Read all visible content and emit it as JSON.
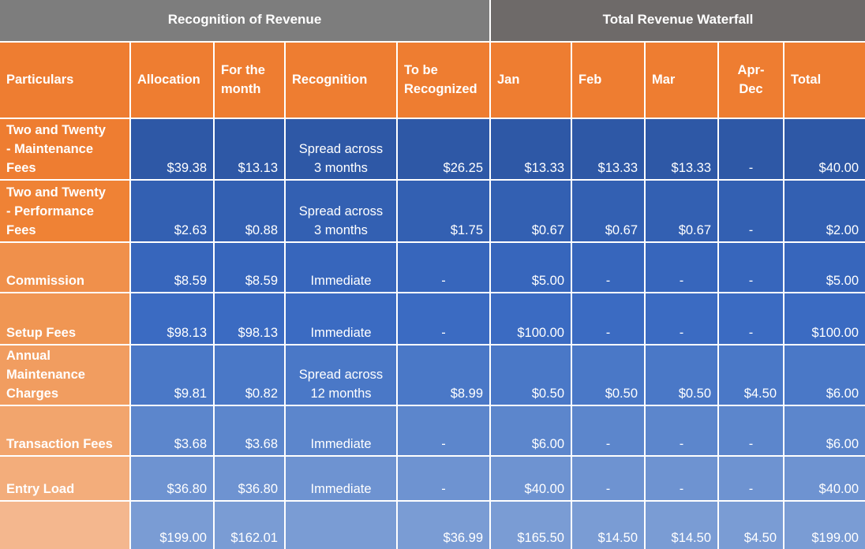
{
  "sections": {
    "recognition": "Recognition of Revenue",
    "waterfall": "Total Revenue Waterfall"
  },
  "headers": {
    "particulars": "Particulars",
    "allocation": "Allocation",
    "for_the_month": "For the\nmonth",
    "recognition": "Recognition",
    "to_be_recognized": "To be\nRecognized",
    "jan": "Jan",
    "feb": "Feb",
    "mar": "Mar",
    "apr_dec": "Apr-\nDec",
    "total": "Total"
  },
  "rows": [
    {
      "particular": "Two and Twenty\n- Maintenance\nFees",
      "allocation": "$39.38",
      "for_month": "$13.13",
      "recognition": "Spread across\n3 months",
      "to_be": "$26.25",
      "jan": "$13.33",
      "feb": "$13.33",
      "mar": "$13.33",
      "apr_dec": "-",
      "total": "$40.00"
    },
    {
      "particular": "Two and Twenty\n- Performance\nFees",
      "allocation": "$2.63",
      "for_month": "$0.88",
      "recognition": "Spread across\n3 months",
      "to_be": "$1.75",
      "jan": "$0.67",
      "feb": "$0.67",
      "mar": "$0.67",
      "apr_dec": "-",
      "total": "$2.00"
    },
    {
      "particular": "Commission",
      "allocation": "$8.59",
      "for_month": "$8.59",
      "recognition": "Immediate",
      "to_be": "-",
      "jan": "$5.00",
      "feb": "-",
      "mar": "-",
      "apr_dec": "-",
      "total": "$5.00"
    },
    {
      "particular": "Setup Fees",
      "allocation": "$98.13",
      "for_month": "$98.13",
      "recognition": "Immediate",
      "to_be": "-",
      "jan": "$100.00",
      "feb": "-",
      "mar": "-",
      "apr_dec": "-",
      "total": "$100.00"
    },
    {
      "particular": "Annual\nMaintenance\nCharges",
      "allocation": "$9.81",
      "for_month": "$0.82",
      "recognition": "Spread across\n12 months",
      "to_be": "$8.99",
      "jan": "$0.50",
      "feb": "$0.50",
      "mar": "$0.50",
      "apr_dec": "$4.50",
      "total": "$6.00"
    },
    {
      "particular": "Transaction Fees",
      "allocation": "$3.68",
      "for_month": "$3.68",
      "recognition": "Immediate",
      "to_be": "-",
      "jan": "$6.00",
      "feb": "-",
      "mar": "-",
      "apr_dec": "-",
      "total": "$6.00"
    },
    {
      "particular": "Entry Load",
      "allocation": "$36.80",
      "for_month": "$36.80",
      "recognition": "Immediate",
      "to_be": "-",
      "jan": "$40.00",
      "feb": "-",
      "mar": "-",
      "apr_dec": "-",
      "total": "$40.00"
    },
    {
      "particular": "",
      "allocation": "$199.00",
      "for_month": "$162.01",
      "recognition": "",
      "to_be": "$36.99",
      "jan": "$165.50",
      "feb": "$14.50",
      "mar": "$14.50",
      "apr_dec": "$4.50",
      "total": "$199.00"
    }
  ],
  "colors": {
    "section_left": "#7d7d7d",
    "section_right": "#6e6a69",
    "header_orange": "#ee7d31",
    "row_orange": [
      "#ee7d31",
      "#ef8235",
      "#f0904b",
      "#f09653",
      "#f19d60",
      "#f2a56d",
      "#f3ad7b",
      "#f4b78e"
    ],
    "row_blue": [
      "#2e58a6",
      "#3360b2",
      "#3766bc",
      "#3b6bc2",
      "#4a78c7",
      "#5c86cc",
      "#6e93d1",
      "#7a9cd4"
    ]
  }
}
